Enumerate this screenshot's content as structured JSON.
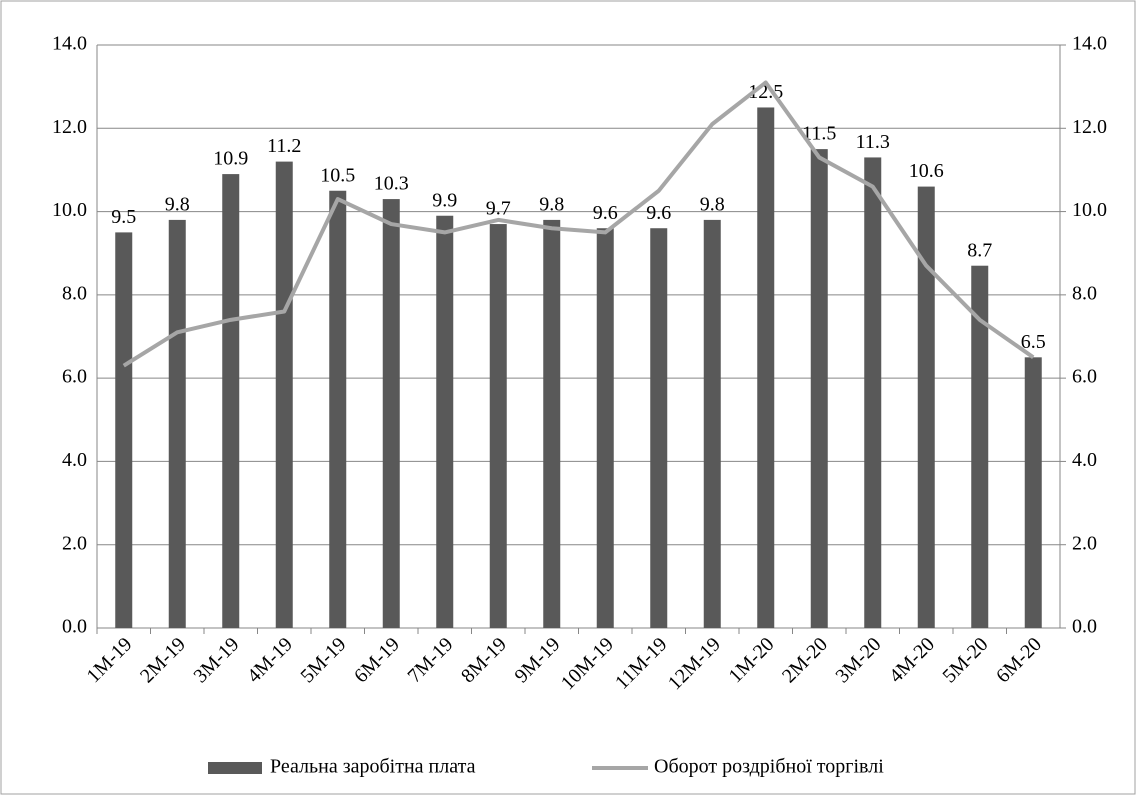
{
  "chart_data": {
    "type": "bar",
    "categories": [
      "1M-19",
      "2M-19",
      "3M-19",
      "4M-19",
      "5M-19",
      "6M-19",
      "7M-19",
      "8M-19",
      "9M-19",
      "10M-19",
      "11M-19",
      "12M-19",
      "1M-20",
      "2M-20",
      "3M-20",
      "4M-20",
      "5M-20",
      "6M-20"
    ],
    "series": [
      {
        "name": "Реальна заробітна плата",
        "type": "bar",
        "color": "#595959",
        "values": [
          9.5,
          9.8,
          10.9,
          11.2,
          10.5,
          10.3,
          9.9,
          9.7,
          9.8,
          9.6,
          9.6,
          9.8,
          12.5,
          11.5,
          11.3,
          10.6,
          8.7,
          6.5
        ]
      },
      {
        "name": "Оборот роздрібної торгівлі",
        "type": "line",
        "axis": "y2",
        "color": "#a6a6a6",
        "values": [
          6.3,
          7.1,
          7.4,
          7.6,
          10.3,
          9.7,
          9.5,
          9.8,
          9.6,
          9.5,
          10.5,
          12.1,
          13.1,
          11.3,
          10.6,
          8.7,
          7.4,
          6.5
        ]
      }
    ],
    "ylim": [
      0,
      14
    ],
    "yticks": [
      {
        "value": 0,
        "label": "0.0"
      },
      {
        "value": 2,
        "label": "2.0"
      },
      {
        "value": 4,
        "label": "4.0"
      },
      {
        "value": 6,
        "label": "6.0"
      },
      {
        "value": 8,
        "label": "8.0"
      },
      {
        "value": 10,
        "label": "10.0"
      },
      {
        "value": 12,
        "label": "12.0"
      },
      {
        "value": 14,
        "label": "14.0"
      }
    ],
    "y2lim": [
      0,
      14
    ],
    "y2ticks": [
      {
        "value": 0,
        "label": "0.0"
      },
      {
        "value": 2,
        "label": "2.0"
      },
      {
        "value": 4,
        "label": "4.0"
      },
      {
        "value": 6,
        "label": "6.0"
      },
      {
        "value": 8,
        "label": "8.0"
      },
      {
        "value": 10,
        "label": "10.0"
      },
      {
        "value": 12,
        "label": "12.0"
      },
      {
        "value": 14,
        "label": "14.0"
      }
    ],
    "grid": true,
    "legend": "bottom"
  }
}
